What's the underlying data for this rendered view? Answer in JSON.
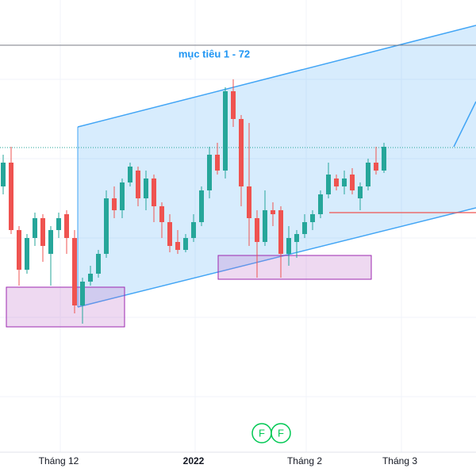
{
  "chart_data": {
    "type": "candlestick",
    "annotation": "mục tiêu 1 - 72",
    "markers": [
      "F",
      "F"
    ],
    "up_color": "#26a69a",
    "down_color": "#ef5350",
    "ylim": [
      17.7,
      77.7
    ],
    "categories": [
      null,
      null,
      null,
      null,
      null,
      null,
      null,
      "Tháng 12",
      null,
      null,
      null,
      null,
      null,
      null,
      null,
      null,
      null,
      null,
      null,
      null,
      null,
      null,
      null,
      null,
      "2022",
      null,
      null,
      null,
      null,
      null,
      null,
      null,
      null,
      null,
      null,
      null,
      null,
      null,
      "Tháng 2",
      null,
      null,
      null,
      null,
      null,
      null,
      null,
      null,
      null,
      null,
      null,
      "Tháng 3",
      null,
      null,
      null,
      null,
      null,
      null,
      null,
      null,
      null
    ],
    "open": [
      54.2,
      57.2,
      48.7,
      43.7,
      47.7,
      50.2,
      45.7,
      48.7,
      50.7,
      47.7,
      39.2,
      42.2,
      43.2,
      45.7,
      52.7,
      51.2,
      54.7,
      56.2,
      52.7,
      55.2,
      51.7,
      49.7,
      47.2,
      46.2,
      47.7,
      49.7,
      53.7,
      58.2,
      56.2,
      66.2,
      62.7,
      54.2,
      50.2,
      47.2,
      51.2,
      51.2,
      45.7,
      47.2,
      48.2,
      49.7,
      50.7,
      53.2,
      55.2,
      54.2,
      55.7,
      52.7,
      54.2,
      57.2,
      56.2,
      null,
      null,
      null,
      null,
      null,
      null,
      null,
      null,
      null,
      null,
      null
    ],
    "high": [
      58.2,
      59.2,
      49.2,
      48.2,
      50.9,
      50.7,
      49.2,
      50.9,
      51.2,
      48.7,
      42.7,
      44.2,
      46.2,
      53.7,
      54.2,
      55.2,
      57.2,
      56.7,
      56.2,
      55.7,
      52.2,
      50.7,
      48.7,
      48.2,
      50.7,
      54.2,
      59.2,
      59.7,
      66.7,
      67.7,
      63.2,
      62.2,
      51.2,
      53.7,
      52.2,
      51.7,
      49.2,
      48.7,
      50.7,
      51.2,
      53.7,
      57.2,
      55.7,
      56.2,
      56.5,
      54.7,
      57.7,
      59.2,
      59.7,
      null,
      null,
      null,
      null,
      null,
      null,
      null,
      null,
      null,
      null,
      null
    ],
    "low": [
      53.2,
      48.2,
      41.7,
      43.2,
      46.7,
      44.7,
      41.7,
      47.7,
      45.7,
      38.2,
      36.9,
      41.7,
      42.7,
      45.2,
      50.2,
      50.2,
      54.2,
      51.7,
      51.2,
      49.7,
      47.7,
      45.9,
      45.7,
      45.9,
      47.2,
      49.2,
      52.7,
      55.7,
      55.2,
      61.7,
      51.7,
      46.7,
      42.7,
      46.7,
      49.2,
      42.7,
      44.2,
      45.2,
      47.7,
      48.7,
      50.2,
      52.7,
      53.7,
      53.2,
      53.2,
      51.2,
      53.7,
      55.7,
      55.9,
      null,
      null,
      null,
      null,
      null,
      null,
      null,
      null,
      null,
      null,
      null
    ],
    "close": [
      57.2,
      48.7,
      43.7,
      47.7,
      50.2,
      46.7,
      48.7,
      50.2,
      47.7,
      39.2,
      42.2,
      43.2,
      45.7,
      52.7,
      51.2,
      54.7,
      56.7,
      52.7,
      55.2,
      51.7,
      49.7,
      46.7,
      46.2,
      47.7,
      49.7,
      53.7,
      58.2,
      56.2,
      66.2,
      62.7,
      54.2,
      50.2,
      47.2,
      51.2,
      50.7,
      45.7,
      47.7,
      48.2,
      49.7,
      50.7,
      53.2,
      55.7,
      54.2,
      55.2,
      53.7,
      54.2,
      57.2,
      56.2,
      59.2,
      null,
      null,
      null,
      null,
      null,
      null,
      null,
      null,
      null,
      null,
      null
    ]
  }
}
